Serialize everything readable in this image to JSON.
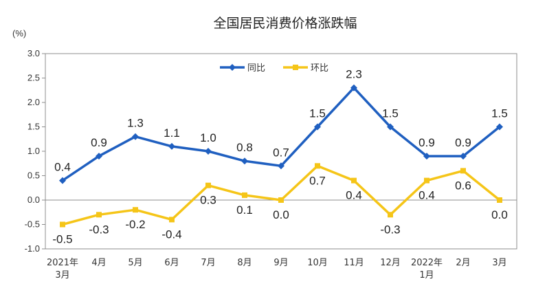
{
  "chart_data": {
    "type": "line",
    "title": "全国居民消费价格涨跌幅",
    "ylabel": "(%)",
    "xlabel": "",
    "ylim": [
      -1.0,
      3.0
    ],
    "yticks": [
      "-1.0",
      "-0.5",
      "0.0",
      "0.5",
      "1.0",
      "1.5",
      "2.0",
      "2.5",
      "3.0"
    ],
    "categories": [
      [
        "2021年",
        "3月"
      ],
      [
        "4月"
      ],
      [
        "5月"
      ],
      [
        "6月"
      ],
      [
        "7月"
      ],
      [
        "8月"
      ],
      [
        "9月"
      ],
      [
        "10月"
      ],
      [
        "11月"
      ],
      [
        "12月"
      ],
      [
        "2022年",
        "1月"
      ],
      [
        "2月"
      ],
      [
        "3月"
      ]
    ],
    "series": [
      {
        "name": "同比",
        "color": "#1f5fc0",
        "values": [
          0.4,
          0.9,
          1.3,
          1.1,
          1.0,
          0.8,
          0.7,
          1.5,
          2.3,
          1.5,
          0.9,
          0.9,
          1.5
        ],
        "labels": [
          "0.4",
          "0.9",
          "1.3",
          "1.1",
          "1.0",
          "0.8",
          "0.7",
          "1.5",
          "2.3",
          "1.5",
          "0.9",
          "0.9",
          "1.5"
        ]
      },
      {
        "name": "环比",
        "color": "#f5c518",
        "values": [
          -0.5,
          -0.3,
          -0.2,
          -0.4,
          0.3,
          0.1,
          0.0,
          0.7,
          0.4,
          -0.3,
          0.4,
          0.6,
          0.0
        ],
        "labels": [
          "-0.5",
          "-0.3",
          "-0.2",
          "-0.4",
          "0.3",
          "0.1",
          "0.0",
          "0.7",
          "0.4",
          "-0.3",
          "0.4",
          "0.6",
          "0.0"
        ]
      }
    ],
    "legend": "top-center",
    "grid": false
  }
}
